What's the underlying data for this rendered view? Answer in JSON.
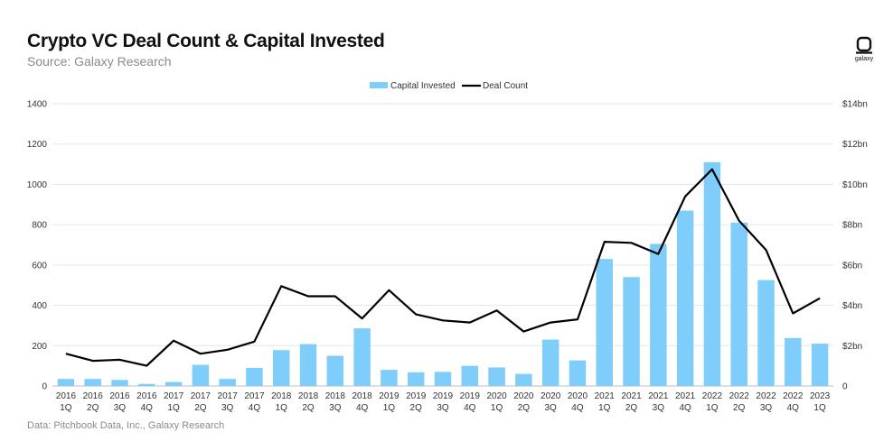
{
  "header": {
    "title": "Crypto VC Deal Count & Capital Invested",
    "subtitle": "Source: Galaxy Research"
  },
  "footer": {
    "note": "Data: Pitchbook Data, Inc., Galaxy Research"
  },
  "logo": {
    "text": "galaxy",
    "icon": "galaxy-logo-icon"
  },
  "colors": {
    "bar": "#7fcdfb",
    "line": "#000000",
    "grid": "#e6e6e6"
  },
  "chart_data": {
    "type": "bar",
    "title": "Crypto VC Deal Count & Capital Invested",
    "subtitle": "Source: Galaxy Research",
    "legend": {
      "placement": "top-center",
      "entries": [
        "Capital Invested",
        "Deal Count"
      ]
    },
    "grid": true,
    "categories": [
      [
        "2016",
        "1Q"
      ],
      [
        "2016",
        "2Q"
      ],
      [
        "2016",
        "3Q"
      ],
      [
        "2016",
        "4Q"
      ],
      [
        "2017",
        "1Q"
      ],
      [
        "2017",
        "2Q"
      ],
      [
        "2017",
        "3Q"
      ],
      [
        "2017",
        "4Q"
      ],
      [
        "2018",
        "1Q"
      ],
      [
        "2018",
        "2Q"
      ],
      [
        "2018",
        "3Q"
      ],
      [
        "2018",
        "4Q"
      ],
      [
        "2019",
        "1Q"
      ],
      [
        "2019",
        "2Q"
      ],
      [
        "2019",
        "3Q"
      ],
      [
        "2019",
        "4Q"
      ],
      [
        "2020",
        "1Q"
      ],
      [
        "2020",
        "2Q"
      ],
      [
        "2020",
        "3Q"
      ],
      [
        "2020",
        "4Q"
      ],
      [
        "2021",
        "1Q"
      ],
      [
        "2021",
        "2Q"
      ],
      [
        "2021",
        "3Q"
      ],
      [
        "2021",
        "4Q"
      ],
      [
        "2022",
        "1Q"
      ],
      [
        "2022",
        "2Q"
      ],
      [
        "2022",
        "3Q"
      ],
      [
        "2022",
        "4Q"
      ],
      [
        "2023",
        "1Q"
      ]
    ],
    "series": [
      {
        "name": "Capital Invested",
        "type": "bar",
        "axis": "right",
        "values": [
          0.35,
          0.35,
          0.3,
          0.1,
          0.2,
          1.05,
          0.35,
          0.9,
          1.78,
          2.08,
          1.5,
          2.86,
          0.8,
          0.68,
          0.7,
          1.0,
          0.92,
          0.6,
          2.3,
          1.27,
          6.3,
          5.4,
          7.05,
          8.7,
          11.1,
          8.1,
          5.25,
          2.38,
          2.1
        ]
      },
      {
        "name": "Deal Count",
        "type": "line",
        "axis": "left",
        "values": [
          160,
          125,
          130,
          100,
          225,
          160,
          180,
          220,
          495,
          445,
          445,
          335,
          475,
          355,
          325,
          315,
          375,
          270,
          315,
          330,
          715,
          710,
          655,
          940,
          1075,
          820,
          675,
          360,
          435
        ]
      }
    ],
    "y_left": {
      "min": 0,
      "max": 1400,
      "ticks": [
        "0",
        "200",
        "400",
        "600",
        "800",
        "1000",
        "1200",
        "1400"
      ]
    },
    "y_right": {
      "min": 0,
      "max": 14,
      "unit": "bn",
      "ticks": [
        "0",
        "$2bn",
        "$4bn",
        "$6bn",
        "$8bn",
        "$10bn",
        "$12bn",
        "$14bn"
      ]
    }
  }
}
